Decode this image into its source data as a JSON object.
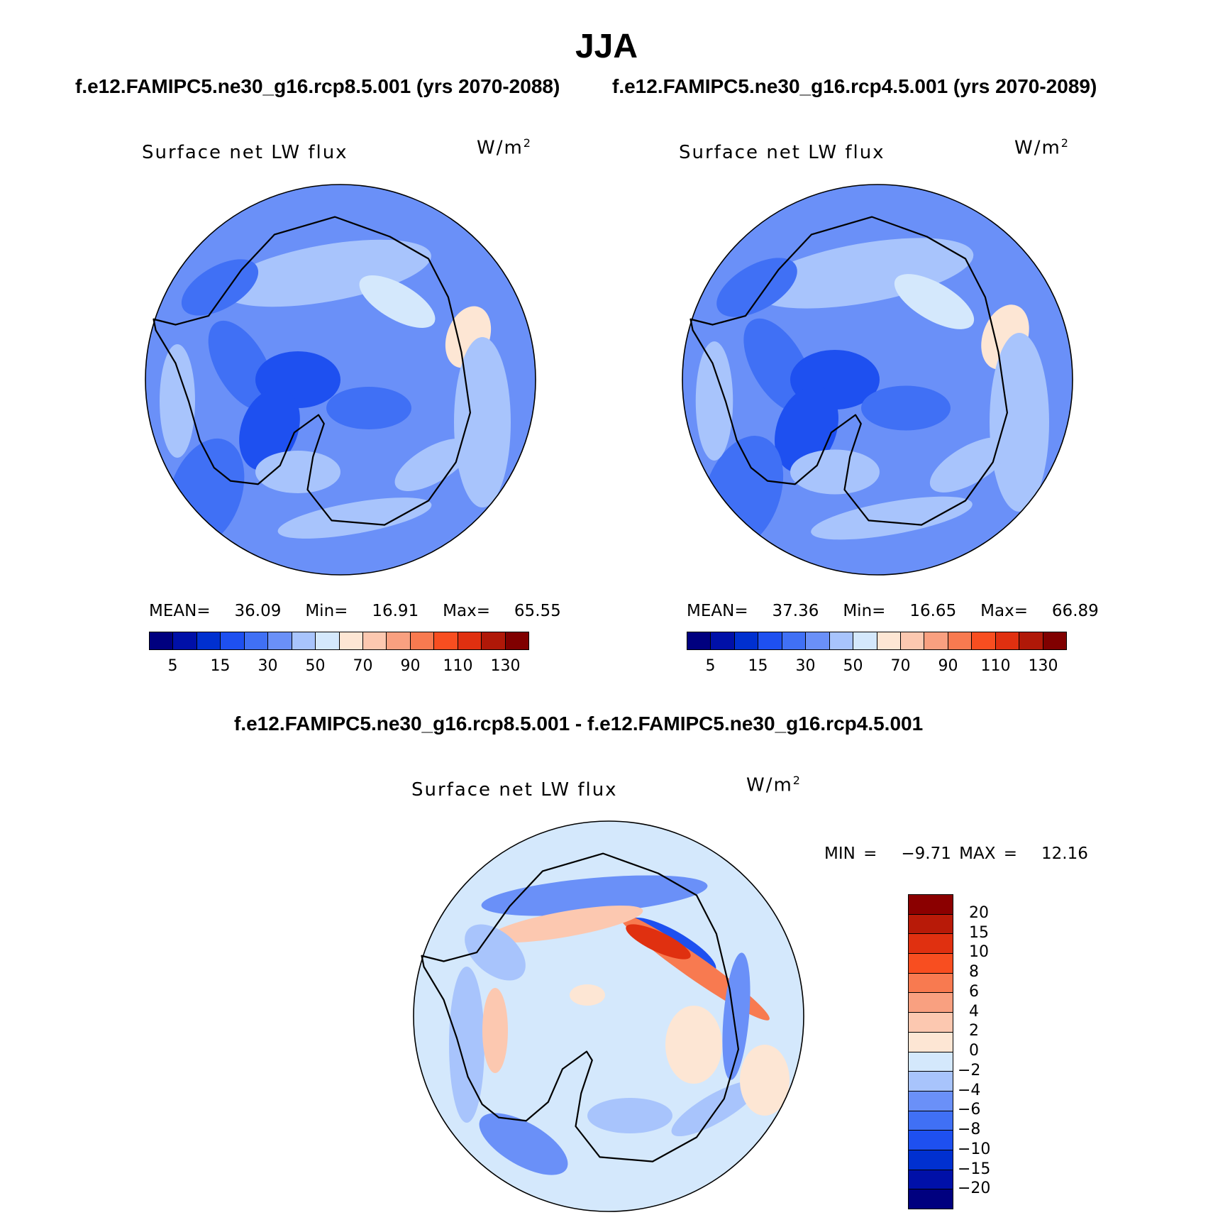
{
  "title": "JJA",
  "panels": [
    {
      "case_title": "f.e12.FAMIPC5.ne30_g16.rcp8.5.001 (yrs 2070-2088)",
      "variable": "Surface net LW flux",
      "units_base": "W/m",
      "units_exp": "2",
      "stats": {
        "mean_label": "MEAN=",
        "mean": "36.09",
        "min_label": "Min=",
        "min": "16.91",
        "max_label": "Max=",
        "max": "65.55"
      },
      "colorbar_ticks": [
        "5",
        "15",
        "30",
        "50",
        "70",
        "90",
        "110",
        "130"
      ]
    },
    {
      "case_title": "f.e12.FAMIPC5.ne30_g16.rcp4.5.001 (yrs 2070-2089)",
      "variable": "Surface net LW flux",
      "units_base": "W/m",
      "units_exp": "2",
      "stats": {
        "mean_label": "MEAN=",
        "mean": "37.36",
        "min_label": "Min=",
        "min": "16.65",
        "max_label": "Max=",
        "max": "66.89"
      },
      "colorbar_ticks": [
        "5",
        "15",
        "30",
        "50",
        "70",
        "90",
        "110",
        "130"
      ]
    }
  ],
  "diff_panel": {
    "case_title": "f.e12.FAMIPC5.ne30_g16.rcp8.5.001 - f.e12.FAMIPC5.ne30_g16.rcp4.5.001",
    "variable": "Surface net LW flux",
    "units_base": "W/m",
    "units_exp": "2",
    "minmax": "MIN =   −9.71 MAX =   12.16",
    "colorbar_ticks": [
      "20",
      "15",
      "10",
      "8",
      "6",
      "4",
      "2",
      "0",
      "−2",
      "−4",
      "−6",
      "−8",
      "−10",
      "−15",
      "−20"
    ]
  },
  "colors": {
    "abs_scale": [
      "#00007f",
      "#0010a8",
      "#0030d0",
      "#1e50f0",
      "#4070f5",
      "#6a90f8",
      "#a8c4fc",
      "#d4e8fc",
      "#fde6d4",
      "#fcc8b0",
      "#f9a080",
      "#f87a50",
      "#f84e20",
      "#e03010",
      "#b01808",
      "#800000"
    ],
    "diff_scale": [
      "#8b0000",
      "#b81a08",
      "#e03010",
      "#f84e20",
      "#f87a50",
      "#f9a080",
      "#fcc8b0",
      "#fde6d4",
      "#d4e8fc",
      "#a8c4fc",
      "#6a90f8",
      "#4070f5",
      "#1e50f0",
      "#0030d0",
      "#0010a8",
      "#00007f"
    ],
    "coast": "#000000"
  }
}
